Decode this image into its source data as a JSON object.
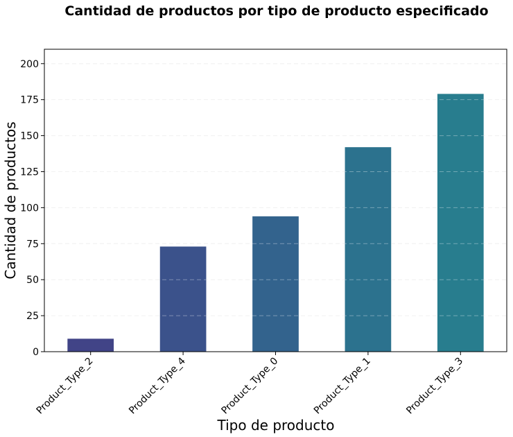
{
  "chart_data": {
    "type": "bar",
    "title": "Cantidad de productos por tipo de producto especificado",
    "xlabel": "Tipo de producto",
    "ylabel": "Cantidad de productos",
    "categories": [
      "Product_Type_2",
      "Product_Type_4",
      "Product_Type_0",
      "Product_Type_1",
      "Product_Type_3"
    ],
    "values": [
      9,
      73,
      94,
      142,
      179
    ],
    "colors": [
      "#414487",
      "#3b528b",
      "#33638d",
      "#2c728e",
      "#287d8e"
    ],
    "ylim": [
      0,
      210
    ],
    "yticks": [
      0,
      25,
      50,
      75,
      100,
      125,
      150,
      175,
      200
    ],
    "grid": "y-dashed",
    "legend": "none"
  }
}
